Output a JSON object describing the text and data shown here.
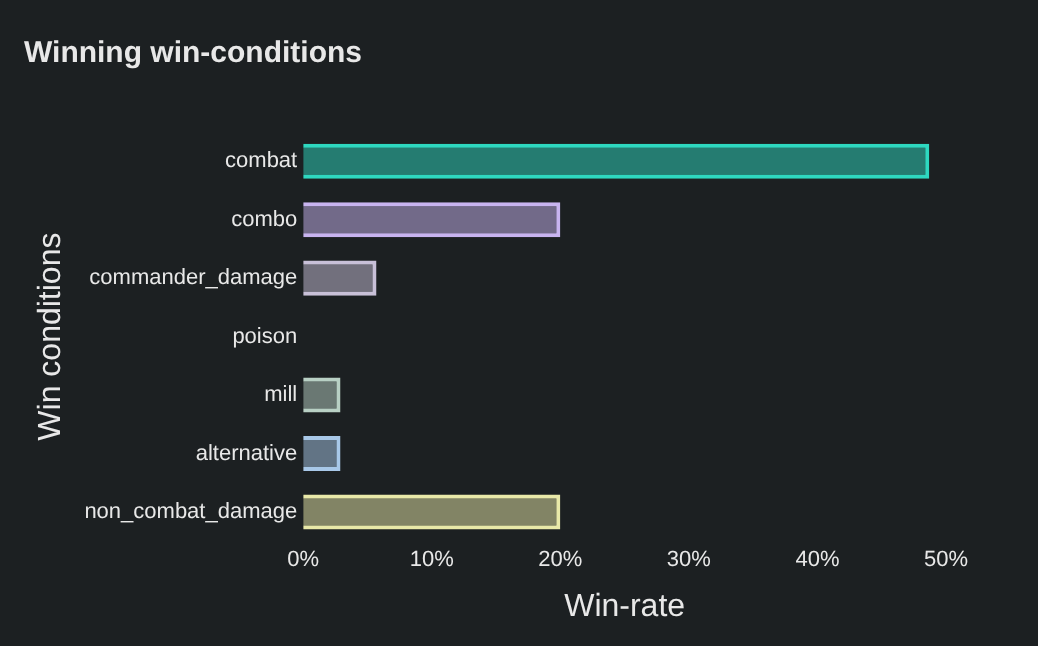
{
  "chart_data": {
    "type": "bar",
    "orientation": "horizontal",
    "title": "Winning win-conditions",
    "xlabel": "Win-rate",
    "ylabel": "Win conditions",
    "categories": [
      "combat",
      "combo",
      "commander_damage",
      "poison",
      "mill",
      "alternative",
      "non_combat_damage"
    ],
    "values": [
      48.7,
      20,
      5.7,
      0,
      2.9,
      2.9,
      20
    ],
    "colors": [
      "#2ed8c0",
      "#c8b4f0",
      "#c8c0d8",
      "#c0c0c0",
      "#b8d0c4",
      "#a8c8e8",
      "#e8e8a8"
    ],
    "xlim": [
      0,
      50
    ],
    "xticks": [
      {
        "value": 0,
        "label": "0%"
      },
      {
        "value": 10,
        "label": "10%"
      },
      {
        "value": 20,
        "label": "20%"
      },
      {
        "value": 30,
        "label": "30%"
      },
      {
        "value": 40,
        "label": "40%"
      },
      {
        "value": 50,
        "label": "50%"
      }
    ],
    "grid": false,
    "legend": false
  }
}
